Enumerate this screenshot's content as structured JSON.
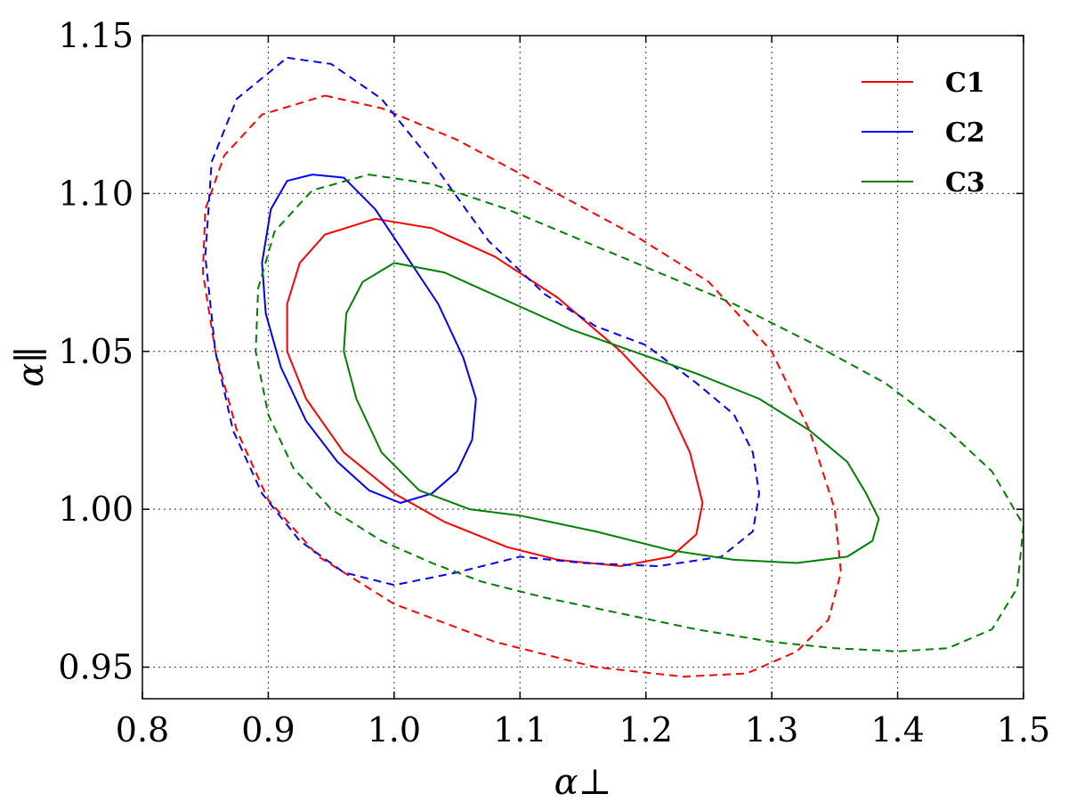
{
  "chart_data": {
    "type": "line",
    "xlabel": "α⊥",
    "ylabel": "α∥",
    "xlim": [
      0.8,
      1.5
    ],
    "ylim": [
      0.94,
      1.15
    ],
    "xticks": [
      0.8,
      0.9,
      1.0,
      1.1,
      1.2,
      1.3,
      1.4,
      1.5
    ],
    "xtick_labels": [
      "0.8",
      "0.9",
      "1.0",
      "1.1",
      "1.2",
      "1.3",
      "1.4",
      "1.5"
    ],
    "yticks": [
      0.95,
      1.0,
      1.05,
      1.1,
      1.15
    ],
    "ytick_labels": [
      "0.95",
      "1.00",
      "1.05",
      "1.10",
      "1.15"
    ],
    "grid": true,
    "legend_position": "top-right",
    "series": [
      {
        "name": "C1",
        "color": "#ff0000",
        "contours": [
          {
            "level": "inner",
            "style": "solid",
            "points": [
              [
                0.985,
                1.092
              ],
              [
                1.03,
                1.089
              ],
              [
                1.08,
                1.08
              ],
              [
                1.13,
                1.067
              ],
              [
                1.18,
                1.05
              ],
              [
                1.215,
                1.035
              ],
              [
                1.235,
                1.018
              ],
              [
                1.245,
                1.002
              ],
              [
                1.24,
                0.992
              ],
              [
                1.22,
                0.985
              ],
              [
                1.18,
                0.982
              ],
              [
                1.13,
                0.984
              ],
              [
                1.09,
                0.988
              ],
              [
                1.04,
                0.996
              ],
              [
                1.0,
                1.005
              ],
              [
                0.96,
                1.018
              ],
              [
                0.93,
                1.035
              ],
              [
                0.915,
                1.05
              ],
              [
                0.915,
                1.065
              ],
              [
                0.925,
                1.078
              ],
              [
                0.945,
                1.087
              ],
              [
                0.985,
                1.092
              ]
            ]
          },
          {
            "level": "outer",
            "style": "dashed",
            "points": [
              [
                0.945,
                1.131
              ],
              [
                0.99,
                1.127
              ],
              [
                1.05,
                1.117
              ],
              [
                1.12,
                1.102
              ],
              [
                1.19,
                1.087
              ],
              [
                1.25,
                1.072
              ],
              [
                1.3,
                1.05
              ],
              [
                1.33,
                1.025
              ],
              [
                1.35,
                1.0
              ],
              [
                1.355,
                0.98
              ],
              [
                1.345,
                0.965
              ],
              [
                1.32,
                0.955
              ],
              [
                1.28,
                0.948
              ],
              [
                1.23,
                0.947
              ],
              [
                1.16,
                0.95
              ],
              [
                1.08,
                0.958
              ],
              [
                1.0,
                0.97
              ],
              [
                0.94,
                0.985
              ],
              [
                0.9,
                1.003
              ],
              [
                0.875,
                1.025
              ],
              [
                0.858,
                1.05
              ],
              [
                0.848,
                1.075
              ],
              [
                0.85,
                1.095
              ],
              [
                0.865,
                1.112
              ],
              [
                0.895,
                1.125
              ],
              [
                0.945,
                1.131
              ]
            ]
          }
        ]
      },
      {
        "name": "C2",
        "color": "#0000ff",
        "contours": [
          {
            "level": "inner",
            "style": "solid",
            "points": [
              [
                0.935,
                1.106
              ],
              [
                0.96,
                1.105
              ],
              [
                0.985,
                1.095
              ],
              [
                1.01,
                1.08
              ],
              [
                1.035,
                1.065
              ],
              [
                1.055,
                1.048
              ],
              [
                1.065,
                1.035
              ],
              [
                1.062,
                1.022
              ],
              [
                1.05,
                1.012
              ],
              [
                1.03,
                1.005
              ],
              [
                1.005,
                1.002
              ],
              [
                0.98,
                1.006
              ],
              [
                0.955,
                1.015
              ],
              [
                0.93,
                1.028
              ],
              [
                0.91,
                1.045
              ],
              [
                0.898,
                1.062
              ],
              [
                0.895,
                1.078
              ],
              [
                0.902,
                1.095
              ],
              [
                0.915,
                1.104
              ],
              [
                0.935,
                1.106
              ]
            ]
          },
          {
            "level": "outer",
            "style": "dashed",
            "points": [
              [
                0.915,
                1.143
              ],
              [
                0.95,
                1.141
              ],
              [
                0.99,
                1.13
              ],
              [
                1.03,
                1.11
              ],
              [
                1.075,
                1.085
              ],
              [
                1.12,
                1.068
              ],
              [
                1.16,
                1.058
              ],
              [
                1.2,
                1.052
              ],
              [
                1.24,
                1.04
              ],
              [
                1.27,
                1.03
              ],
              [
                1.285,
                1.018
              ],
              [
                1.29,
                1.005
              ],
              [
                1.285,
                0.993
              ],
              [
                1.26,
                0.985
              ],
              [
                1.21,
                0.982
              ],
              [
                1.15,
                0.983
              ],
              [
                1.1,
                0.985
              ],
              [
                1.05,
                0.98
              ],
              [
                1.0,
                0.976
              ],
              [
                0.96,
                0.98
              ],
              [
                0.925,
                0.99
              ],
              [
                0.895,
                1.005
              ],
              [
                0.872,
                1.025
              ],
              [
                0.858,
                1.05
              ],
              [
                0.85,
                1.08
              ],
              [
                0.855,
                1.11
              ],
              [
                0.875,
                1.13
              ],
              [
                0.915,
                1.143
              ]
            ]
          }
        ]
      },
      {
        "name": "C3",
        "color": "#008000",
        "contours": [
          {
            "level": "inner",
            "style": "solid",
            "points": [
              [
                1.0,
                1.078
              ],
              [
                1.04,
                1.075
              ],
              [
                1.09,
                1.066
              ],
              [
                1.14,
                1.057
              ],
              [
                1.19,
                1.05
              ],
              [
                1.24,
                1.043
              ],
              [
                1.29,
                1.035
              ],
              [
                1.33,
                1.025
              ],
              [
                1.36,
                1.015
              ],
              [
                1.375,
                1.005
              ],
              [
                1.385,
                0.997
              ],
              [
                1.38,
                0.99
              ],
              [
                1.36,
                0.985
              ],
              [
                1.32,
                0.983
              ],
              [
                1.27,
                0.984
              ],
              [
                1.22,
                0.987
              ],
              [
                1.16,
                0.993
              ],
              [
                1.1,
                0.998
              ],
              [
                1.06,
                1.0
              ],
              [
                1.02,
                1.006
              ],
              [
                0.99,
                1.018
              ],
              [
                0.97,
                1.035
              ],
              [
                0.96,
                1.05
              ],
              [
                0.962,
                1.062
              ],
              [
                0.975,
                1.072
              ],
              [
                1.0,
                1.078
              ]
            ]
          },
          {
            "level": "outer",
            "style": "dashed",
            "points": [
              [
                0.98,
                1.106
              ],
              [
                1.03,
                1.103
              ],
              [
                1.09,
                1.095
              ],
              [
                1.15,
                1.085
              ],
              [
                1.21,
                1.075
              ],
              [
                1.27,
                1.065
              ],
              [
                1.33,
                1.053
              ],
              [
                1.39,
                1.04
              ],
              [
                1.44,
                1.025
              ],
              [
                1.475,
                1.012
              ],
              [
                1.5,
                0.995
              ],
              [
                1.495,
                0.975
              ],
              [
                1.475,
                0.962
              ],
              [
                1.44,
                0.956
              ],
              [
                1.4,
                0.955
              ],
              [
                1.35,
                0.956
              ],
              [
                1.3,
                0.958
              ],
              [
                1.24,
                0.962
              ],
              [
                1.18,
                0.967
              ],
              [
                1.12,
                0.972
              ],
              [
                1.07,
                0.977
              ],
              [
                1.03,
                0.983
              ],
              [
                0.99,
                0.99
              ],
              [
                0.95,
                1.0
              ],
              [
                0.92,
                1.013
              ],
              [
                0.9,
                1.03
              ],
              [
                0.89,
                1.05
              ],
              [
                0.892,
                1.07
              ],
              [
                0.905,
                1.088
              ],
              [
                0.935,
                1.101
              ],
              [
                0.98,
                1.106
              ]
            ]
          }
        ]
      }
    ]
  }
}
